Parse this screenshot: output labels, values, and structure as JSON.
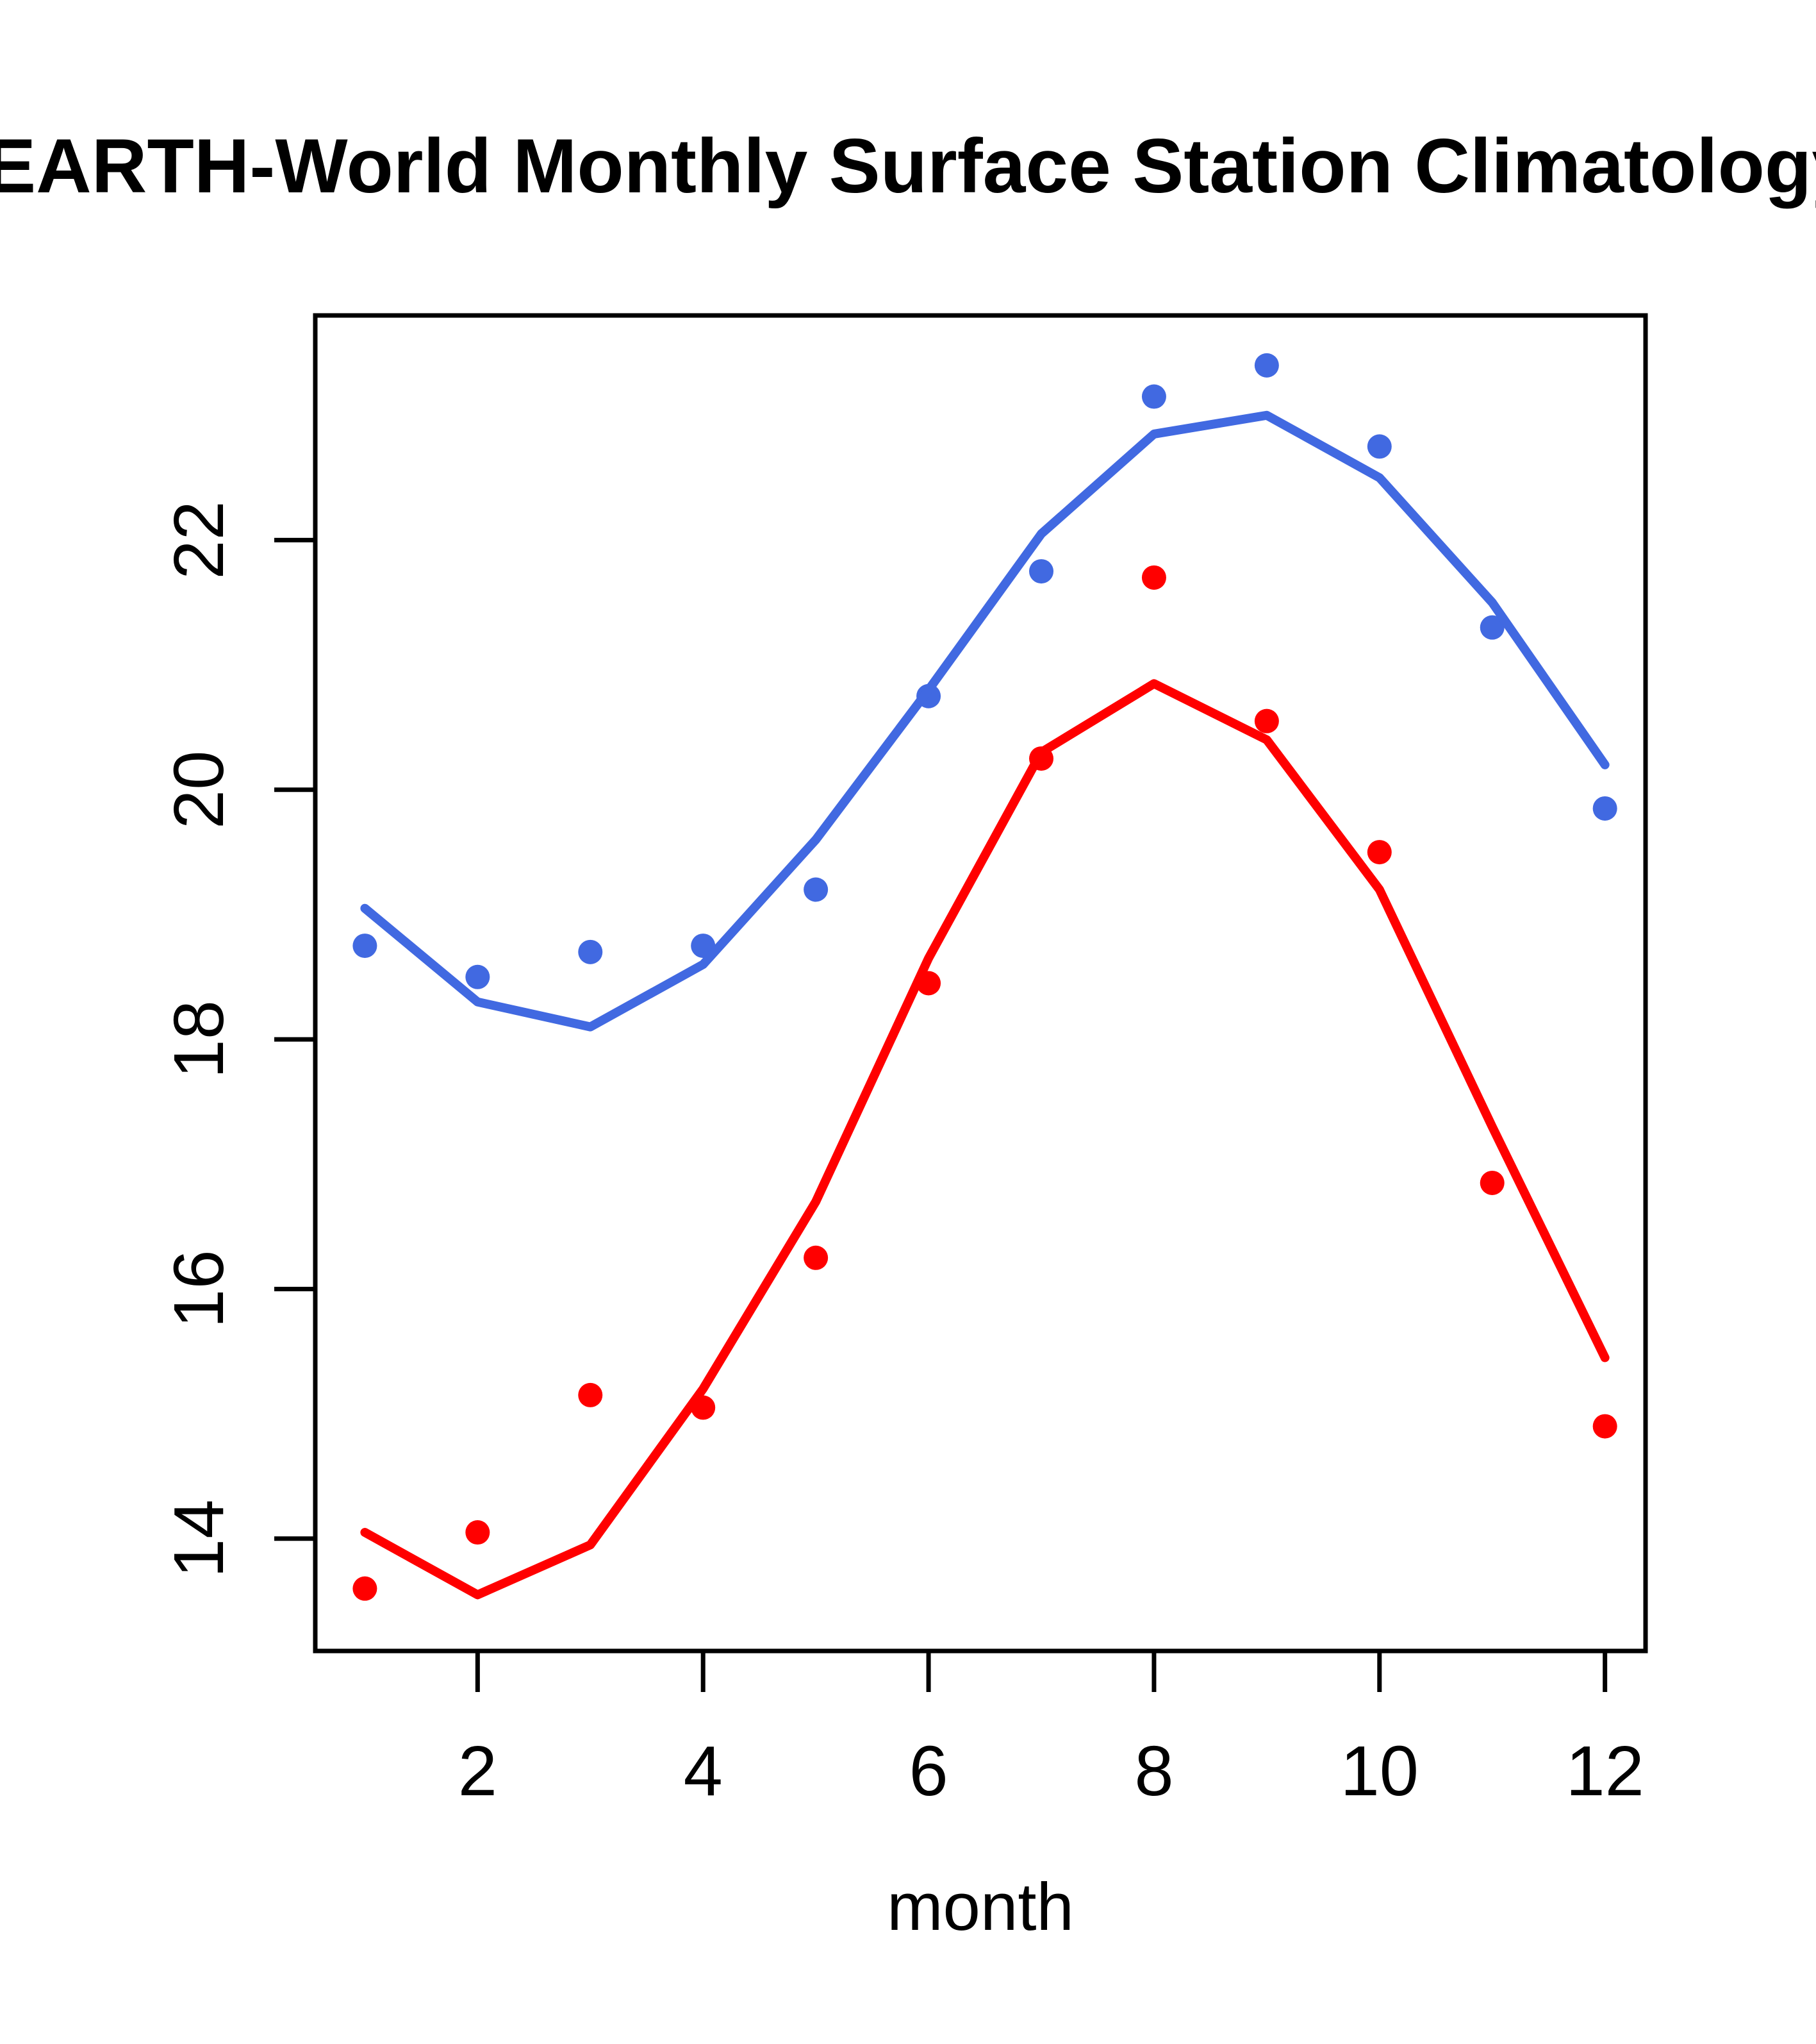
{
  "title": "EARTH-World Monthly Surface Station Climatology",
  "axes": {
    "xlabel": "month",
    "x_tick_labels": [
      "2",
      "4",
      "6",
      "8",
      "10",
      "12"
    ],
    "y_tick_labels": [
      "14",
      "16",
      "18",
      "20",
      "22"
    ]
  },
  "colors": {
    "series_blue": "#4169E1",
    "series_red": "#FF0000",
    "axis": "#000000",
    "background": "#FFFFFF"
  },
  "chart_data": {
    "type": "line",
    "title": "EARTH-World Monthly Surface Station Climatology",
    "xlabel": "month",
    "ylabel": "",
    "grid": false,
    "legend_position": "none",
    "x": [
      1,
      2,
      3,
      4,
      5,
      6,
      7,
      8,
      9,
      10,
      11,
      12
    ],
    "xlim": [
      0.56,
      12.36
    ],
    "ylim": [
      13.1,
      23.8
    ],
    "xticks": [
      2,
      4,
      6,
      8,
      10,
      12
    ],
    "yticks": [
      14,
      16,
      18,
      20,
      22
    ],
    "series": [
      {
        "name": "blue-dots",
        "type": "scatter",
        "marker": "circle",
        "color": "#4169E1",
        "values": [
          18.75,
          18.5,
          18.7,
          18.75,
          19.2,
          20.75,
          21.75,
          23.15,
          23.4,
          22.75,
          21.3,
          19.85
        ]
      },
      {
        "name": "blue-line",
        "type": "line",
        "color": "#4169E1",
        "values": [
          19.05,
          18.3,
          18.1,
          18.6,
          19.6,
          20.8,
          22.05,
          22.85,
          23.0,
          22.5,
          21.5,
          20.2
        ]
      },
      {
        "name": "red-dots",
        "type": "scatter",
        "marker": "circle",
        "color": "#FF0000",
        "values": [
          13.6,
          14.05,
          15.15,
          15.05,
          16.25,
          18.45,
          20.25,
          21.7,
          20.55,
          19.5,
          16.85,
          14.9
        ]
      },
      {
        "name": "red-line",
        "type": "line",
        "color": "#FF0000",
        "values": [
          14.05,
          13.55,
          13.95,
          15.2,
          16.7,
          18.65,
          20.3,
          20.85,
          20.4,
          19.2,
          17.3,
          15.45
        ]
      }
    ]
  }
}
